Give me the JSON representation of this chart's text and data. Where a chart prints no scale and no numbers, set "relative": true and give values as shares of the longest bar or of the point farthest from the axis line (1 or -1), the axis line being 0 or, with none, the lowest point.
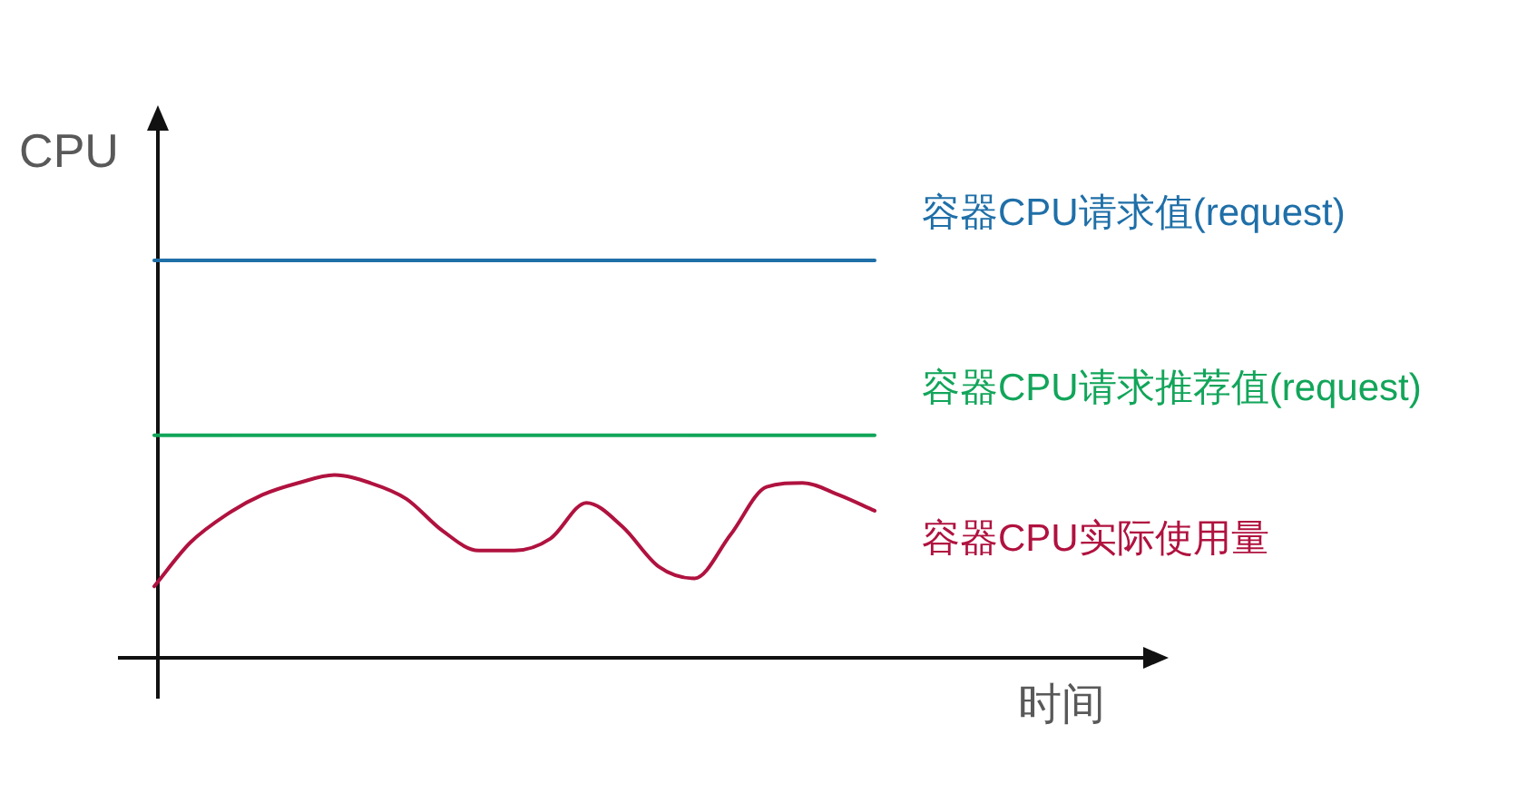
{
  "chart_data": {
    "type": "line",
    "relative": true,
    "xlabel": "时间",
    "ylabel": "CPU",
    "categories": [
      null,
      null,
      null,
      null,
      null,
      null,
      null,
      null,
      null,
      null,
      null,
      null,
      null,
      null,
      null,
      null,
      null,
      null,
      null,
      null,
      null
    ],
    "series": [
      {
        "name": "容器CPU请求值(request)",
        "color": "#1f6fa8",
        "values": [
          1,
          1,
          1,
          1,
          1,
          1,
          1,
          1,
          1,
          1,
          1,
          1,
          1,
          1,
          1,
          1,
          1,
          1,
          1,
          1,
          1
        ]
      },
      {
        "name": "容器CPU请求推荐值(request)",
        "color": "#12a55a",
        "values": [
          0.56,
          0.56,
          0.56,
          0.56,
          0.56,
          0.56,
          0.56,
          0.56,
          0.56,
          0.56,
          0.56,
          0.56,
          0.56,
          0.56,
          0.56,
          0.56,
          0.56,
          0.56,
          0.56,
          0.56,
          0.56
        ]
      },
      {
        "name": "容器CPU实际使用量",
        "color": "#b0123f",
        "values": [
          0.18,
          0.29,
          0.36,
          0.41,
          0.44,
          0.46,
          0.44,
          0.4,
          0.32,
          0.27,
          0.27,
          0.3,
          0.39,
          0.33,
          0.23,
          0.2,
          0.31,
          0.43,
          0.44,
          0.41,
          0.37
        ]
      }
    ]
  }
}
